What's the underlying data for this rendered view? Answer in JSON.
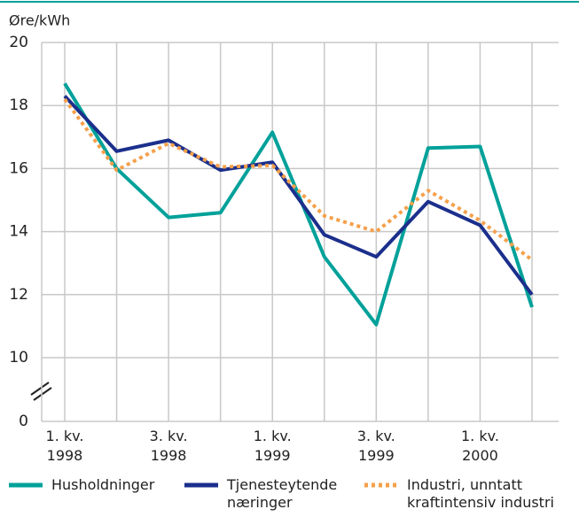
{
  "chart_data": {
    "type": "line",
    "y_label": "Øre/kWh",
    "categories": [
      "1. kv.\n1998",
      null,
      "3. kv.\n1998",
      null,
      "1. kv.\n1999",
      null,
      "3. kv.\n1999",
      null,
      "1. kv.\n2000",
      null
    ],
    "series": [
      {
        "name": "Husholdninger",
        "color": "#00a19a",
        "style": "solid",
        "values": [
          18.7,
          16.0,
          14.45,
          14.6,
          17.15,
          13.2,
          11.05,
          16.65,
          16.7,
          11.6
        ]
      },
      {
        "name": "Tjenesteytende\nnæringer",
        "color": "#1b2f8c",
        "style": "solid",
        "values": [
          18.3,
          16.55,
          16.9,
          15.95,
          16.2,
          13.9,
          13.2,
          14.95,
          14.2,
          12.0
        ]
      },
      {
        "name": "Industri, unntatt\nkraftintensiv industri",
        "color": "#f5a04a",
        "style": "dotted",
        "values": [
          18.2,
          15.95,
          16.8,
          16.05,
          16.1,
          14.5,
          14.0,
          15.3,
          14.35,
          13.1
        ]
      }
    ],
    "ylim": [
      0,
      20
    ],
    "y_break": [
      0,
      10
    ],
    "yticks": [
      0,
      10,
      12,
      14,
      16,
      18,
      20
    ],
    "grid": true,
    "legend": "bottom"
  }
}
